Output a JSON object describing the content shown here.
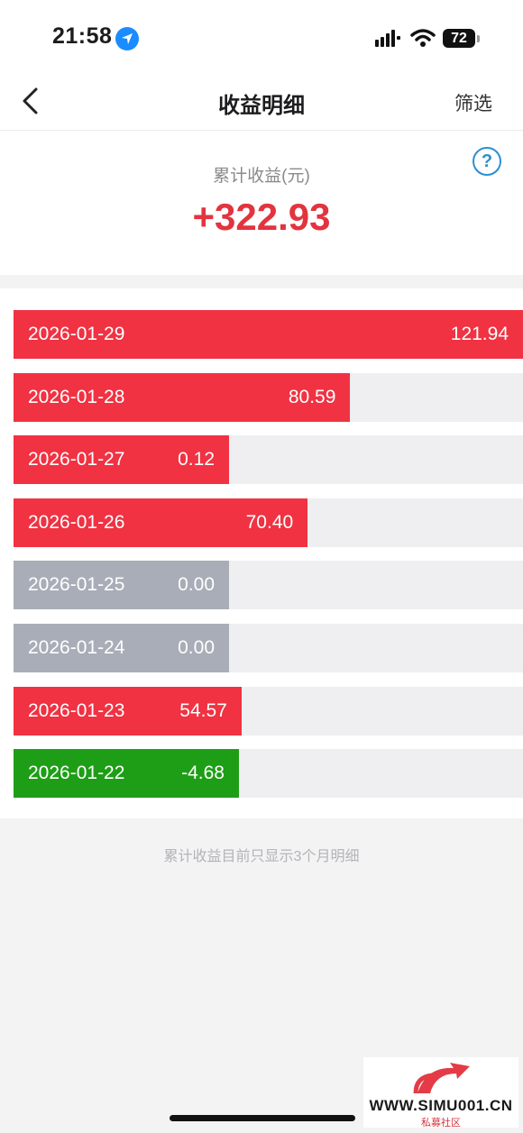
{
  "status_bar": {
    "time": "21:58",
    "battery": "72"
  },
  "nav": {
    "title": "收益明细",
    "filter_label": "筛选"
  },
  "summary": {
    "label": "累计收益(元)",
    "value": "+322.93",
    "help": "?"
  },
  "records": [
    {
      "date": "2026-01-29",
      "value": "121.94",
      "amount": 121.94,
      "status": "positive"
    },
    {
      "date": "2026-01-28",
      "value": "80.59",
      "amount": 80.59,
      "status": "positive"
    },
    {
      "date": "2026-01-27",
      "value": "0.12",
      "amount": 0.12,
      "status": "positive"
    },
    {
      "date": "2026-01-26",
      "value": "70.40",
      "amount": 70.4,
      "status": "positive"
    },
    {
      "date": "2026-01-25",
      "value": "0.00",
      "amount": 0.0,
      "status": "zero"
    },
    {
      "date": "2026-01-24",
      "value": "0.00",
      "amount": 0.0,
      "status": "zero"
    },
    {
      "date": "2026-01-23",
      "value": "54.57",
      "amount": 54.57,
      "status": "positive"
    },
    {
      "date": "2026-01-22",
      "value": "-4.68",
      "amount": -4.68,
      "status": "negative"
    }
  ],
  "footnote": "累计收益目前只显示3个月明细",
  "watermark": {
    "site": "WWW.SIMU001.CN",
    "subtitle": "私募社区"
  },
  "colors": {
    "positive": "#f03242",
    "zero": "#a9adb7",
    "negative": "#1e9e16",
    "accent": "#e2343f",
    "link": "#2a8fd1"
  }
}
